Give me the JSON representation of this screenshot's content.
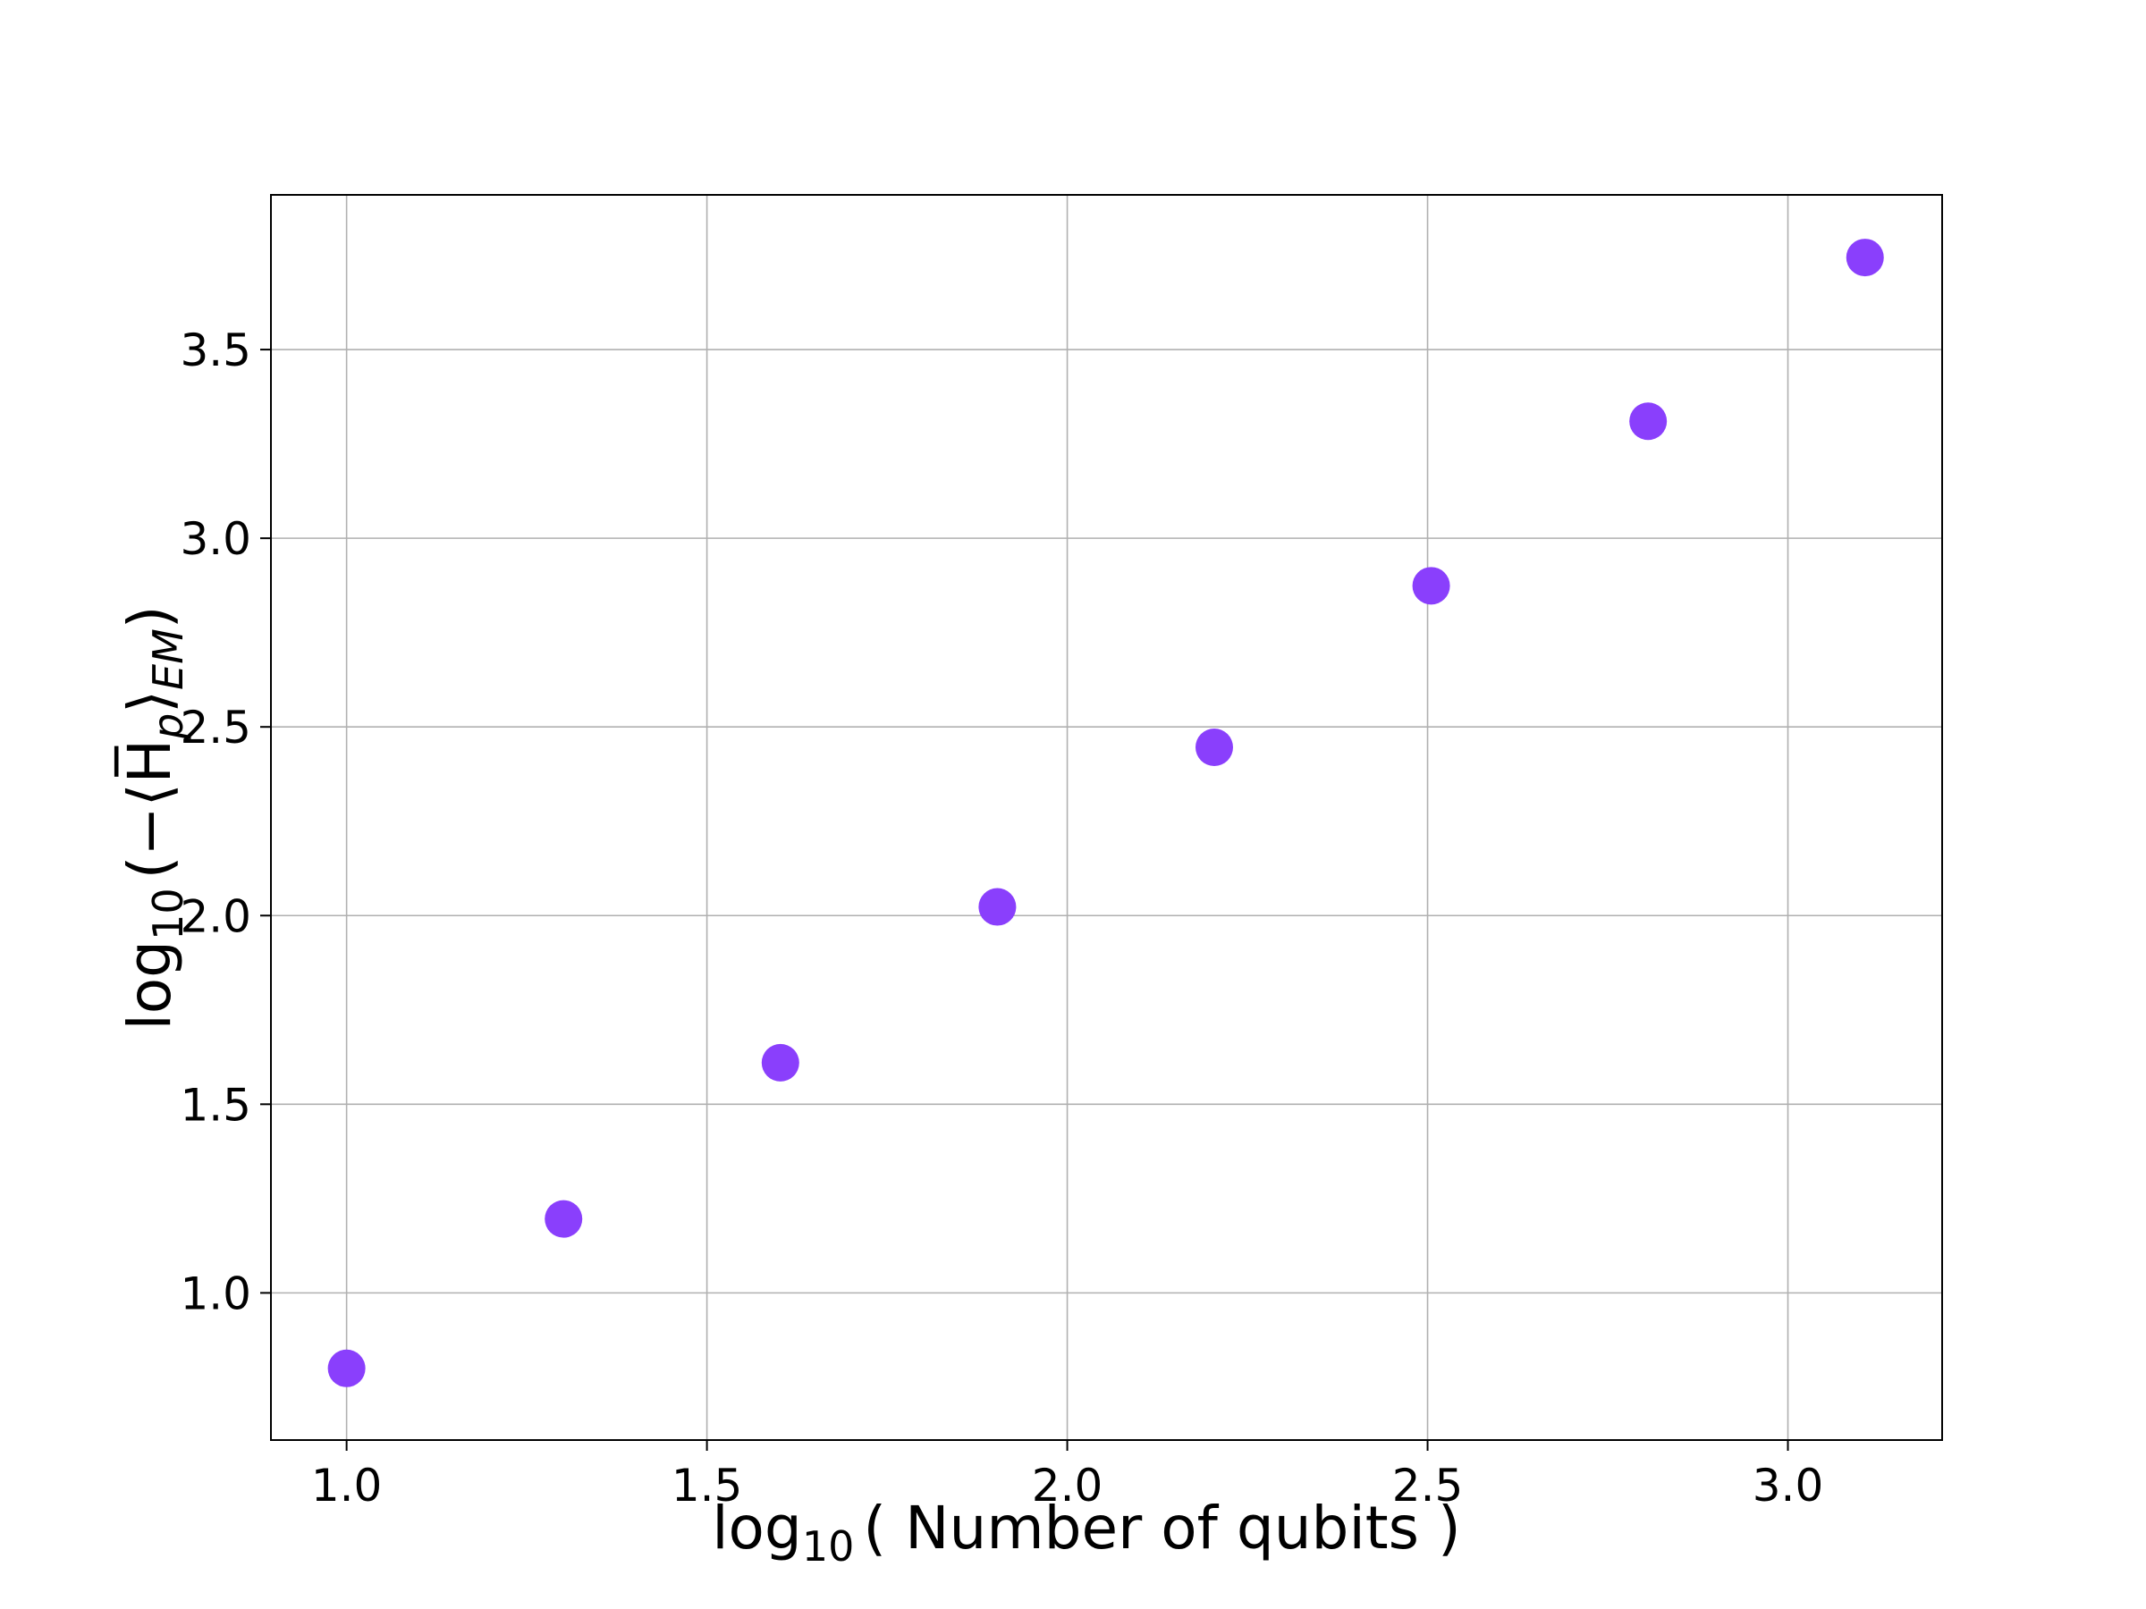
{
  "chart_data": {
    "type": "scatter",
    "title": "",
    "xlabel": {
      "main": "log",
      "sub": "10",
      "rest": "( Number of qubits )"
    },
    "ylabel": {
      "main": "log",
      "sub": "10",
      "rest": "(−⟨H̅",
      "sub2": "p",
      "rest2": "⟩",
      "sub3": "EM",
      "rest3": ")"
    },
    "xlim": [
      0.895,
      3.214
    ],
    "ylim": [
      0.61,
      3.91
    ],
    "xticks": [
      1.0,
      1.5,
      2.0,
      2.5,
      3.0
    ],
    "yticks": [
      1.0,
      1.5,
      2.0,
      2.5,
      3.0,
      3.5
    ],
    "xtick_labels": [
      "1.0",
      "1.5",
      "2.0",
      "2.5",
      "3.0"
    ],
    "ytick_labels": [
      "1.0",
      "1.5",
      "2.0",
      "2.5",
      "3.0",
      "3.5"
    ],
    "grid": true,
    "marker_color": "#8a3ffc",
    "points": [
      {
        "x": 1.0,
        "y": 0.8
      },
      {
        "x": 1.301,
        "y": 1.196
      },
      {
        "x": 1.602,
        "y": 1.61
      },
      {
        "x": 1.903,
        "y": 2.023
      },
      {
        "x": 2.204,
        "y": 2.446
      },
      {
        "x": 2.505,
        "y": 2.874
      },
      {
        "x": 2.806,
        "y": 3.31
      },
      {
        "x": 3.107,
        "y": 3.744
      }
    ]
  }
}
